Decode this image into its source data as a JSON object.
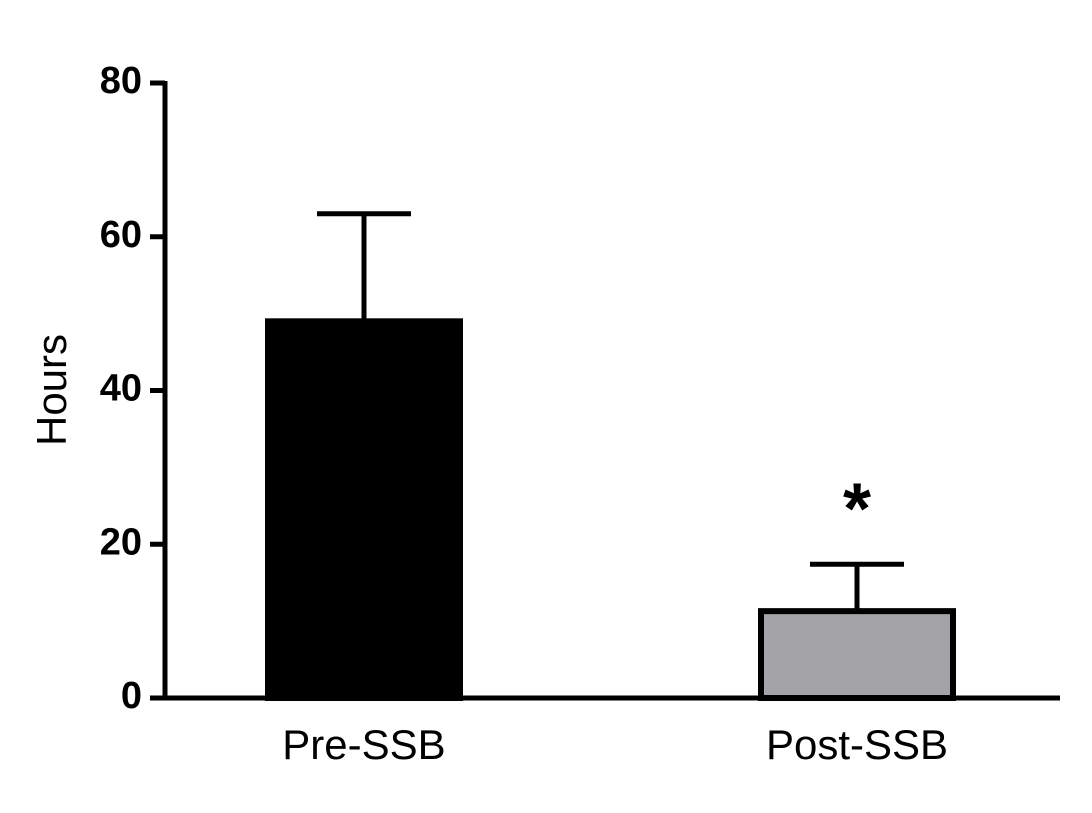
{
  "chart_data": {
    "type": "bar",
    "y_label": "Hours",
    "categories": [
      "Pre-SSB",
      "Post-SSB"
    ],
    "values": [
      49,
      11.3
    ],
    "errors": [
      14,
      6.1
    ],
    "colors": [
      "#000000",
      "#a4a3a8"
    ],
    "significance": [
      null,
      "*"
    ],
    "ylim": [
      0,
      80
    ],
    "yticks": [
      0,
      20,
      40,
      60,
      80
    ]
  }
}
